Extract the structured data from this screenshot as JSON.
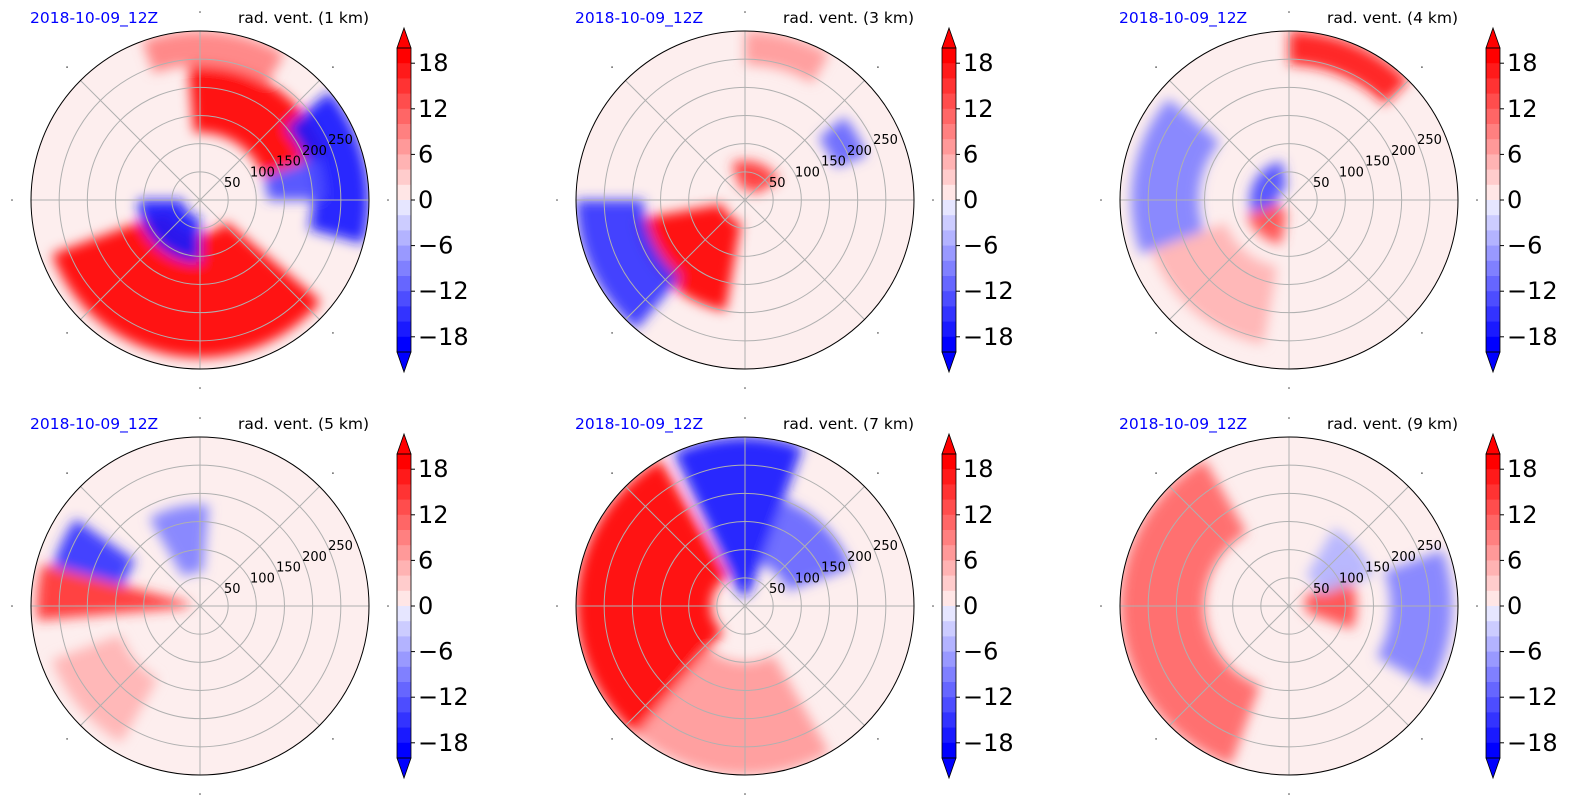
{
  "figure": {
    "date_label": "2018-10-09_12Z",
    "colors": {
      "positive": "#ff0000",
      "negative": "#0000ff",
      "neutral": "#ffffff",
      "grid": "#b0b0b0",
      "date_text": "#0000ff"
    }
  },
  "chart_data": [
    {
      "type": "heatmap",
      "projection": "polar",
      "title_left": "2018-10-09_12Z",
      "title_right": "rad. vent. (1 km)",
      "ring_labels": [
        "50",
        "100",
        "150",
        "200",
        "250"
      ],
      "rmax": 300,
      "colorbar": {
        "ticks": [
          "18",
          "12",
          "6",
          "0",
          "−6",
          "−12",
          "−18"
        ],
        "vmin": -20,
        "vmax": 20,
        "extend": "both"
      },
      "features": [
        {
          "type": "arc",
          "sign": 1,
          "strength": 1.0,
          "r0": 60,
          "r1": 280,
          "theta0": 200,
          "theta1": 320
        },
        {
          "type": "arc",
          "sign": 1,
          "strength": 1.0,
          "r0": 120,
          "r1": 240,
          "theta0": 20,
          "theta1": 95
        },
        {
          "type": "arc",
          "sign": -1,
          "strength": 0.9,
          "r0": 200,
          "r1": 300,
          "theta0": 345,
          "theta1": 40
        },
        {
          "type": "arc",
          "sign": -1,
          "strength": 0.9,
          "r0": 30,
          "r1": 110,
          "theta0": 180,
          "theta1": 270
        },
        {
          "type": "arc",
          "sign": 1,
          "strength": 0.5,
          "r0": 240,
          "r1": 300,
          "theta0": 60,
          "theta1": 110
        },
        {
          "type": "arc",
          "sign": -1,
          "strength": 0.7,
          "r0": 120,
          "r1": 220,
          "theta0": 0,
          "theta1": 20
        }
      ]
    },
    {
      "type": "heatmap",
      "projection": "polar",
      "title_left": "2018-10-09_12Z",
      "title_right": "rad. vent. (3 km)",
      "ring_labels": [
        "50",
        "100",
        "150",
        "200",
        "250"
      ],
      "rmax": 300,
      "colorbar": {
        "ticks": [
          "18",
          "12",
          "6",
          "0",
          "−6",
          "−12",
          "−18"
        ],
        "vmin": -20,
        "vmax": 20,
        "extend": "both"
      },
      "features": [
        {
          "type": "arc",
          "sign": 1,
          "strength": 1.0,
          "r0": 40,
          "r1": 200,
          "theta0": 190,
          "theta1": 260
        },
        {
          "type": "arc",
          "sign": -1,
          "strength": 0.8,
          "r0": 180,
          "r1": 300,
          "theta0": 180,
          "theta1": 230
        },
        {
          "type": "arc",
          "sign": 1,
          "strength": 0.8,
          "r0": 20,
          "r1": 70,
          "theta0": 30,
          "theta1": 110
        },
        {
          "type": "arc",
          "sign": 1,
          "strength": 0.4,
          "r0": 240,
          "r1": 300,
          "theta0": 60,
          "theta1": 90
        },
        {
          "type": "arc",
          "sign": -1,
          "strength": 0.6,
          "r0": 170,
          "r1": 230,
          "theta0": 20,
          "theta1": 40
        }
      ]
    },
    {
      "type": "heatmap",
      "projection": "polar",
      "title_left": "2018-10-09_12Z",
      "title_right": "rad. vent. (4 km)",
      "ring_labels": [
        "50",
        "100",
        "150",
        "200",
        "250"
      ],
      "rmax": 300,
      "colorbar": {
        "ticks": [
          "18",
          "12",
          "6",
          "0",
          "−6",
          "−12",
          "−18"
        ],
        "vmin": -20,
        "vmax": 20,
        "extend": "both"
      },
      "features": [
        {
          "type": "arc",
          "sign": 1,
          "strength": 0.9,
          "r0": 240,
          "r1": 300,
          "theta0": 45,
          "theta1": 90
        },
        {
          "type": "arc",
          "sign": -1,
          "strength": 0.7,
          "r0": 20,
          "r1": 70,
          "theta0": 100,
          "theta1": 200
        },
        {
          "type": "arc",
          "sign": 1,
          "strength": 0.7,
          "r0": 20,
          "r1": 80,
          "theta0": 200,
          "theta1": 260
        },
        {
          "type": "arc",
          "sign": -1,
          "strength": 0.5,
          "r0": 160,
          "r1": 280,
          "theta0": 140,
          "theta1": 200
        },
        {
          "type": "arc",
          "sign": 1,
          "strength": 0.3,
          "r0": 120,
          "r1": 260,
          "theta0": 200,
          "theta1": 260
        }
      ]
    },
    {
      "type": "heatmap",
      "projection": "polar",
      "title_left": "2018-10-09_12Z",
      "title_right": "rad. vent. (5 km)",
      "ring_labels": [
        "50",
        "100",
        "150",
        "200",
        "250"
      ],
      "rmax": 300,
      "colorbar": {
        "ticks": [
          "18",
          "12",
          "6",
          "0",
          "−6",
          "−12",
          "−18"
        ],
        "vmin": -20,
        "vmax": 20,
        "extend": "both"
      },
      "features": [
        {
          "type": "arc",
          "sign": 1,
          "strength": 0.8,
          "r0": 20,
          "r1": 290,
          "theta0": 165,
          "theta1": 185
        },
        {
          "type": "arc",
          "sign": -1,
          "strength": 0.8,
          "r0": 140,
          "r1": 270,
          "theta0": 145,
          "theta1": 165
        },
        {
          "type": "arc",
          "sign": -1,
          "strength": 0.5,
          "r0": 60,
          "r1": 180,
          "theta0": 85,
          "theta1": 120
        },
        {
          "type": "arc",
          "sign": 1,
          "strength": 0.3,
          "r0": 150,
          "r1": 280,
          "theta0": 200,
          "theta1": 240
        }
      ]
    },
    {
      "type": "heatmap",
      "projection": "polar",
      "title_left": "2018-10-09_12Z",
      "title_right": "rad. vent. (7 km)",
      "ring_labels": [
        "50",
        "100",
        "150",
        "200",
        "250"
      ],
      "rmax": 300,
      "colorbar": {
        "ticks": [
          "18",
          "12",
          "6",
          "0",
          "−6",
          "−12",
          "−18"
        ],
        "vmin": -20,
        "vmax": 20,
        "extend": "both"
      },
      "features": [
        {
          "type": "arc",
          "sign": 1,
          "strength": 1.0,
          "r0": 60,
          "r1": 300,
          "theta0": 120,
          "theta1": 230
        },
        {
          "type": "arc",
          "sign": -1,
          "strength": 0.9,
          "r0": 20,
          "r1": 300,
          "theta0": 70,
          "theta1": 115
        },
        {
          "type": "arc",
          "sign": -1,
          "strength": 0.6,
          "r0": 80,
          "r1": 200,
          "theta0": 20,
          "theta1": 70
        },
        {
          "type": "arc",
          "sign": 1,
          "strength": 0.35,
          "r0": 100,
          "r1": 300,
          "theta0": 230,
          "theta1": 300
        }
      ]
    },
    {
      "type": "heatmap",
      "projection": "polar",
      "title_left": "2018-10-09_12Z",
      "title_right": "rad. vent. (9 km)",
      "ring_labels": [
        "50",
        "100",
        "150",
        "200",
        "250"
      ],
      "rmax": 300,
      "colorbar": {
        "ticks": [
          "18",
          "12",
          "6",
          "0",
          "−6",
          "−12",
          "−18"
        ],
        "vmin": -20,
        "vmax": 20,
        "extend": "both"
      },
      "features": [
        {
          "type": "arc",
          "sign": 1,
          "strength": 0.55,
          "r0": 150,
          "r1": 300,
          "theta0": 120,
          "theta1": 250
        },
        {
          "type": "arc",
          "sign": -1,
          "strength": 0.45,
          "r0": 180,
          "r1": 290,
          "theta0": 330,
          "theta1": 20
        },
        {
          "type": "arc",
          "sign": 1,
          "strength": 0.7,
          "r0": 30,
          "r1": 120,
          "theta0": 340,
          "theta1": 30
        },
        {
          "type": "arc",
          "sign": -1,
          "strength": 0.3,
          "r0": 60,
          "r1": 160,
          "theta0": 20,
          "theta1": 60
        }
      ]
    }
  ]
}
